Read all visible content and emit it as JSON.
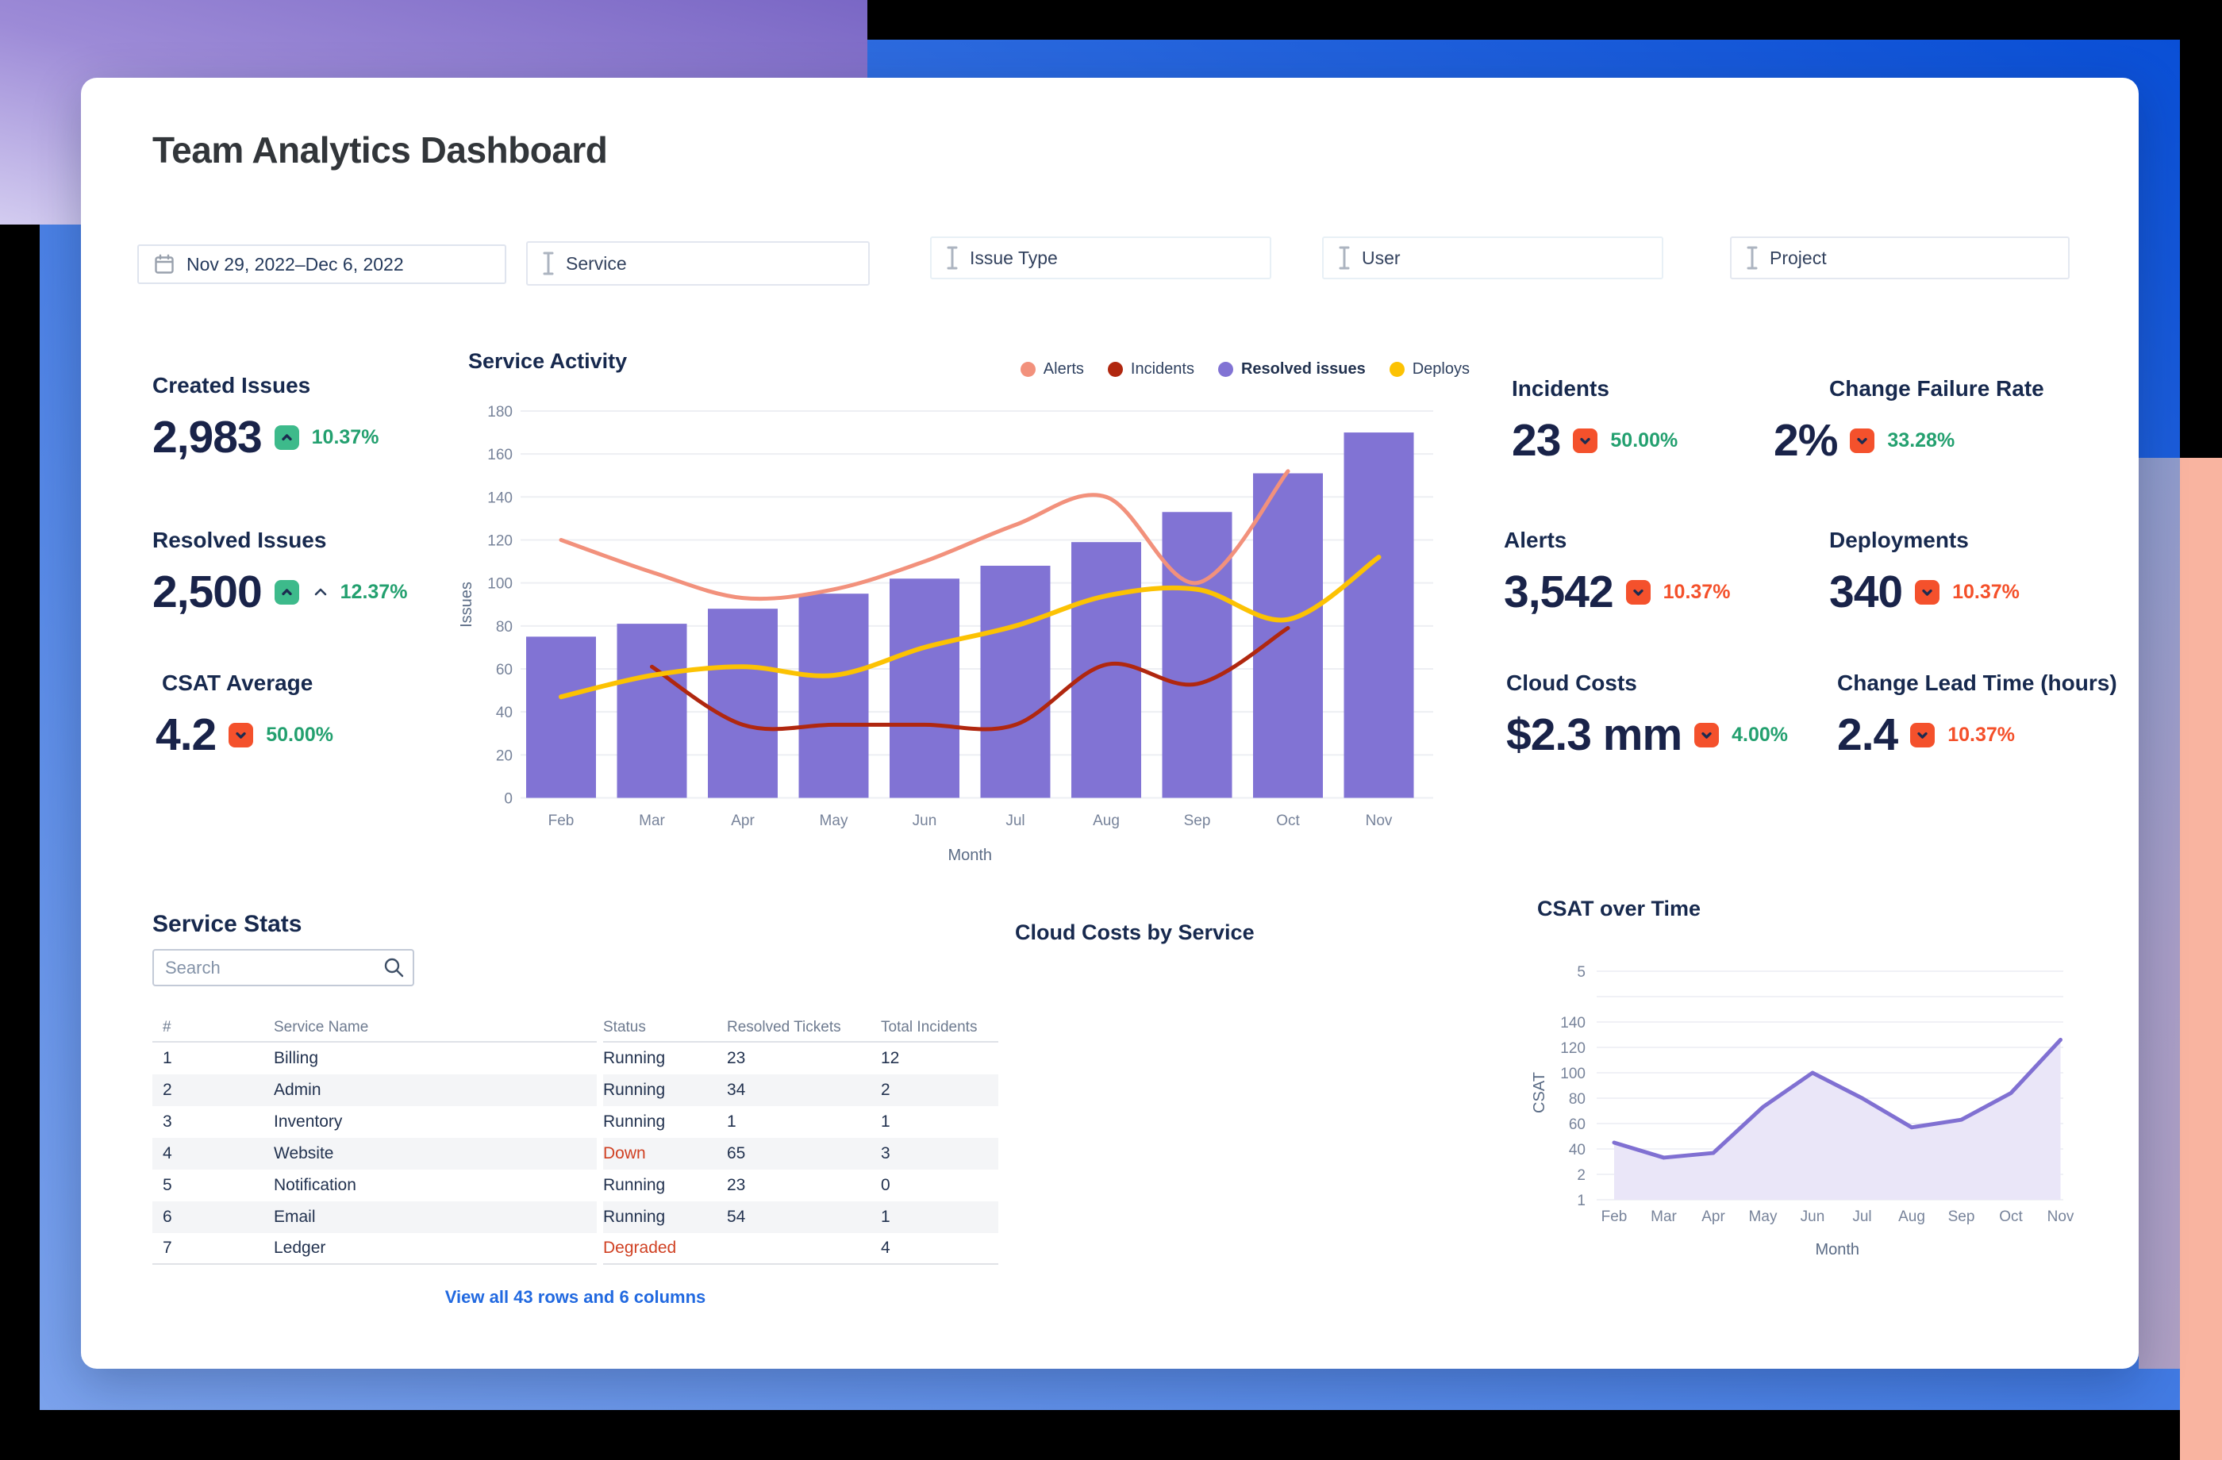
{
  "page": {
    "title": "Team Analytics Dashboard"
  },
  "filters": {
    "date_range": {
      "label": "Nov 29, 2022–Dec 6, 2022",
      "icon": "calendar-icon"
    },
    "items": [
      {
        "label": "Service"
      },
      {
        "label": "Issue Type"
      },
      {
        "label": "User"
      },
      {
        "label": "Project"
      }
    ]
  },
  "kpis_left": [
    {
      "label": "Created Issues",
      "value": "2,983",
      "badge_dir": "up",
      "badge_color": "green",
      "pct": "10.37%",
      "pct_color": "green",
      "extra_caret": false
    },
    {
      "label": "Resolved Issues",
      "value": "2,500",
      "badge_dir": "up",
      "badge_color": "green",
      "pct": "12.37%",
      "pct_color": "green",
      "extra_caret": true
    },
    {
      "label": "CSAT Average",
      "value": "4.2",
      "badge_dir": "down",
      "badge_color": "red",
      "pct": "50.00%",
      "pct_color": "green",
      "extra_caret": false
    }
  ],
  "kpis_right": [
    {
      "label": "Incidents",
      "value": "23",
      "badge_dir": "down",
      "badge_color": "red",
      "pct": "50.00%",
      "pct_color": "green",
      "extra_caret": false
    },
    {
      "label": "Change Failure Rate",
      "value": "2%",
      "badge_dir": "down",
      "badge_color": "red",
      "pct": "33.28%",
      "pct_color": "green",
      "extra_caret": false
    },
    {
      "label": "Alerts",
      "value": "3,542",
      "badge_dir": "down",
      "badge_color": "red",
      "pct": "10.37%",
      "pct_color": "orange",
      "extra_caret": false
    },
    {
      "label": "Deployments",
      "value": "340",
      "badge_dir": "down",
      "badge_color": "red",
      "pct": "10.37%",
      "pct_color": "orange",
      "extra_caret": false
    },
    {
      "label": "Cloud Costs",
      "value": "$2.3 mm",
      "badge_dir": "down",
      "badge_color": "red",
      "pct": "4.00%",
      "pct_color": "green",
      "extra_caret": false
    },
    {
      "label": "Change Lead Time (hours)",
      "value": "2.4",
      "badge_dir": "down",
      "badge_color": "red",
      "pct": "10.37%",
      "pct_color": "orange",
      "extra_caret": false
    }
  ],
  "service_stats": {
    "title": "Service Stats",
    "search_placeholder": "Search",
    "columns": [
      "#",
      "Service Name",
      "Status",
      "Resolved Tickets",
      "Total Incidents"
    ],
    "rows": [
      {
        "num": "1",
        "name": "Billing",
        "status": "Running",
        "status_red": false,
        "resolved": "23",
        "incidents": "12"
      },
      {
        "num": "2",
        "name": "Admin",
        "status": "Running",
        "status_red": false,
        "resolved": "34",
        "incidents": "2"
      },
      {
        "num": "3",
        "name": "Inventory",
        "status": "Running",
        "status_red": false,
        "resolved": "1",
        "incidents": "1"
      },
      {
        "num": "4",
        "name": "Website",
        "status": "Down",
        "status_red": true,
        "resolved": "65",
        "incidents": "3"
      },
      {
        "num": "5",
        "name": "Notification",
        "status": "Running",
        "status_red": false,
        "resolved": "23",
        "incidents": "0"
      },
      {
        "num": "6",
        "name": "Email",
        "status": "Running",
        "status_red": false,
        "resolved": "54",
        "incidents": "1"
      },
      {
        "num": "7",
        "name": "Ledger",
        "status": "Degraded",
        "status_red": true,
        "resolved": "",
        "incidents": "4"
      }
    ],
    "footer_link": "View all 43 rows and 6 columns"
  },
  "cloud_costs": {
    "title": "Cloud Costs by Service"
  },
  "chart_data": [
    {
      "id": "service_activity",
      "type": "bar+line",
      "title": "Service Activity",
      "categories": [
        "Feb",
        "Mar",
        "Apr",
        "May",
        "Jun",
        "Jul",
        "Aug",
        "Sep",
        "Oct",
        "Nov"
      ],
      "xlabel": "Month",
      "ylabel": "Issues",
      "ylim": [
        0,
        180
      ],
      "ytick_step": 20,
      "grid": true,
      "legend_position": "top-right",
      "series": [
        {
          "name": "Alerts",
          "type": "line",
          "color": "#F2917C",
          "width": 5,
          "emph": false,
          "values": [
            120,
            105,
            93,
            97,
            110,
            127,
            140,
            100,
            152,
            null
          ]
        },
        {
          "name": "Incidents",
          "type": "line",
          "color": "#B0270F",
          "width": 5,
          "emph": false,
          "values": [
            null,
            61,
            34,
            34,
            34,
            34,
            62,
            53,
            79,
            null
          ]
        },
        {
          "name": "Resolved issues",
          "type": "bar",
          "color": "#8173D4",
          "width": 0,
          "emph": true,
          "values": [
            75,
            81,
            88,
            95,
            102,
            108,
            119,
            133,
            151,
            170
          ]
        },
        {
          "name": "Deploys",
          "type": "line",
          "color": "#FCC203",
          "width": 6,
          "emph": false,
          "values": [
            47,
            57,
            61,
            57,
            70,
            80,
            94,
            97,
            83,
            112
          ]
        }
      ]
    },
    {
      "id": "csat_over_time",
      "type": "area",
      "title": "CSAT over Time",
      "categories": [
        "Feb",
        "Mar",
        "Apr",
        "May",
        "Jun",
        "Jul",
        "Aug",
        "Sep",
        "Oct",
        "Nov"
      ],
      "xlabel": "Month",
      "ylabel": "CSAT",
      "ytick_labels_bottom_to_top": [
        "1",
        "2",
        "40",
        "60",
        "80",
        "100",
        "120",
        "140",
        "",
        "5"
      ],
      "line_color": "#8070D2",
      "fill_color": "#EAE6F8",
      "values": [
        45,
        27,
        34,
        73,
        100,
        80,
        57,
        63,
        84,
        126
      ]
    }
  ]
}
